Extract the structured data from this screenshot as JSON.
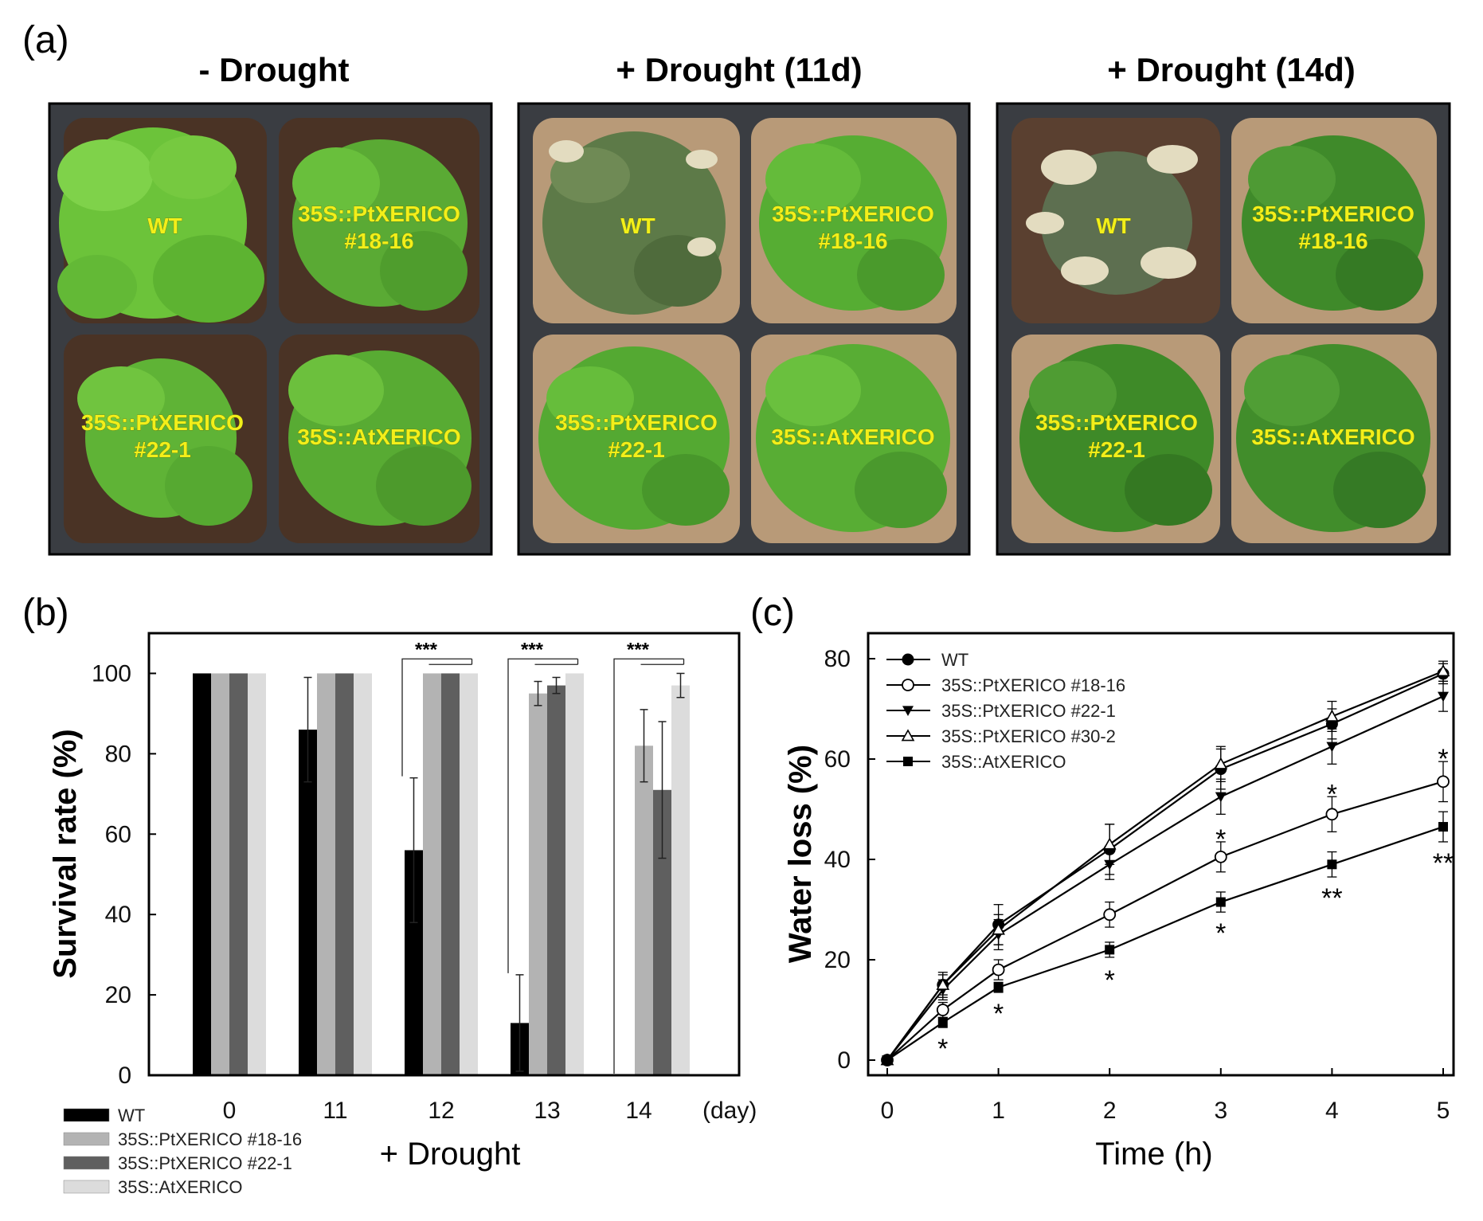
{
  "panel_a": {
    "letter": "(a)",
    "photos": [
      {
        "title": "- Drought",
        "condition": "well-watered"
      },
      {
        "title": "+ Drought (11d)",
        "condition": "drought-11d"
      },
      {
        "title": "+ Drought (14d)",
        "condition": "drought-14d"
      }
    ],
    "pot_labels": {
      "wt": "WT",
      "pt18_line1": "35S::PtXERICO",
      "pt18_line2": "#18-16",
      "pt22_line1": "35S::PtXERICO",
      "pt22_line2": "#22-1",
      "at": "35S::AtXERICO"
    },
    "colors": {
      "leaf_healthy": "#6cc33a",
      "leaf_dark": "#3e8a25",
      "leaf_wilted": "#5d7a48",
      "leaf_dead": "#e3dcc0",
      "soil": "#4a3325",
      "soil_dry": "#b89a78",
      "tray": "#3a3d42",
      "label_text": "#f2ef1a"
    }
  },
  "chart_data": [
    {
      "panel": "(b)",
      "type": "bar",
      "title": "",
      "xlabel": "+ Drought",
      "ylabel": "Survival rate (%)",
      "x_unit_label": "(day)",
      "ylim": [
        0,
        110
      ],
      "yticks": [
        0,
        20,
        40,
        60,
        80,
        100
      ],
      "categories": [
        "0",
        "11",
        "12",
        "13",
        "14"
      ],
      "series": [
        {
          "name": "WT",
          "color": "#000000",
          "values": [
            100,
            86,
            56,
            13,
            0
          ],
          "errors": [
            0,
            13,
            18,
            12,
            0
          ]
        },
        {
          "name": "35S::PtXERICO #18-16",
          "color": "#b3b3b3",
          "values": [
            100,
            100,
            100,
            95,
            82
          ],
          "errors": [
            0,
            0,
            0,
            3,
            9
          ]
        },
        {
          "name": "35S::PtXERICO #22-1",
          "color": "#5f5f5f",
          "values": [
            100,
            100,
            100,
            97,
            71
          ],
          "errors": [
            0,
            0,
            0,
            2,
            17
          ]
        },
        {
          "name": "35S::AtXERICO",
          "color": "#dcdcdc",
          "values": [
            100,
            100,
            100,
            100,
            97
          ],
          "errors": [
            0,
            0,
            0,
            0,
            3
          ]
        }
      ],
      "significance": [
        {
          "category": "12",
          "label": "***"
        },
        {
          "category": "13",
          "label": "***"
        },
        {
          "category": "14",
          "label": "***"
        }
      ],
      "legend_position": "bottom-left"
    },
    {
      "panel": "(c)",
      "type": "line",
      "title": "",
      "xlabel": "Time (h)",
      "ylabel": "Water loss (%)",
      "xlim": [
        0,
        5
      ],
      "ylim": [
        -3,
        83
      ],
      "xticks": [
        0,
        1,
        2,
        3,
        4,
        5
      ],
      "yticks": [
        0,
        20,
        40,
        60,
        80
      ],
      "x": [
        0,
        0.5,
        1,
        2,
        3,
        4,
        5
      ],
      "series": [
        {
          "name": "WT",
          "marker": "circle-filled",
          "values": [
            0,
            15,
            27,
            42,
            58,
            67,
            77
          ],
          "errors": [
            0,
            2.5,
            4,
            5,
            4,
            3,
            2
          ]
        },
        {
          "name": "35S::PtXERICO #18-16",
          "marker": "circle-open",
          "values": [
            0,
            10,
            18,
            29,
            40.5,
            49,
            55.5
          ],
          "errors": [
            0,
            1.5,
            2,
            2.5,
            3,
            3.5,
            4
          ]
        },
        {
          "name": "35S::PtXERICO #22-1",
          "marker": "triangle-down-filled",
          "values": [
            0,
            14,
            25,
            39,
            52.5,
            62.5,
            72.5
          ],
          "errors": [
            0,
            2,
            3,
            3,
            3.5,
            3.5,
            3
          ]
        },
        {
          "name": "35S::PtXERICO #30-2",
          "marker": "triangle-up-open",
          "values": [
            0,
            15,
            26,
            43,
            59,
            68.5,
            77.5
          ],
          "errors": [
            0,
            2,
            3,
            4,
            3.5,
            3,
            2
          ]
        },
        {
          "name": "35S::AtXERICO",
          "marker": "square-filled",
          "values": [
            0,
            7.5,
            14.5,
            22,
            31.5,
            39,
            46.5
          ],
          "errors": [
            0,
            1,
            1,
            1.5,
            2,
            2.5,
            3
          ]
        }
      ],
      "significance": [
        {
          "x": 0.5,
          "label": "*"
        },
        {
          "x": 1,
          "label": "*"
        },
        {
          "x": 2,
          "label": "*"
        },
        {
          "x": 3,
          "label": "*"
        },
        {
          "x": 3,
          "label": "*"
        },
        {
          "x": 4,
          "label": "*"
        },
        {
          "x": 4,
          "label": "**"
        },
        {
          "x": 5,
          "label": "*"
        },
        {
          "x": 5,
          "label": "**"
        }
      ],
      "legend_position": "top-left"
    }
  ]
}
